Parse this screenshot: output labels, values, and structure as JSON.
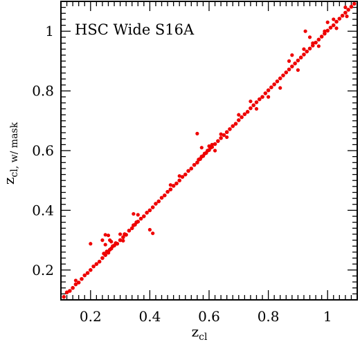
{
  "chart_data": {
    "type": "scatter",
    "title": "",
    "annotation": "HSC Wide S16A",
    "xlabel": {
      "main": "z",
      "sub": "cl"
    },
    "ylabel": {
      "main": "z",
      "sub": "cl, w/ mask"
    },
    "xlim": [
      0.1,
      1.1
    ],
    "ylim": [
      0.1,
      1.1
    ],
    "xticks_major": [
      0.2,
      0.4,
      0.6,
      0.8,
      1.0
    ],
    "xtick_labels": [
      "0.2",
      "0.4",
      "0.6",
      "0.8",
      "1"
    ],
    "yticks_major": [
      0.2,
      0.4,
      0.6,
      0.8,
      1.0
    ],
    "ytick_labels": [
      "0.2",
      "0.4",
      "0.6",
      "0.8",
      "1"
    ],
    "minor_tick_step": 0.02,
    "grid": false,
    "marker_color": "#ee0000",
    "series": [
      {
        "main_relation": "y = x",
        "points": [
          [
            0.11,
            0.11
          ],
          [
            0.12,
            0.125
          ],
          [
            0.13,
            0.13
          ],
          [
            0.14,
            0.14
          ],
          [
            0.15,
            0.152
          ],
          [
            0.16,
            0.158
          ],
          [
            0.17,
            0.17
          ],
          [
            0.18,
            0.182
          ],
          [
            0.19,
            0.19
          ],
          [
            0.2,
            0.2
          ],
          [
            0.21,
            0.212
          ],
          [
            0.22,
            0.22
          ],
          [
            0.23,
            0.228
          ],
          [
            0.24,
            0.24
          ],
          [
            0.245,
            0.255
          ],
          [
            0.25,
            0.25
          ],
          [
            0.255,
            0.262
          ],
          [
            0.26,
            0.258
          ],
          [
            0.265,
            0.268
          ],
          [
            0.27,
            0.272
          ],
          [
            0.275,
            0.28
          ],
          [
            0.28,
            0.282
          ],
          [
            0.285,
            0.29
          ],
          [
            0.29,
            0.288
          ],
          [
            0.3,
            0.3
          ],
          [
            0.31,
            0.31
          ],
          [
            0.315,
            0.32
          ],
          [
            0.32,
            0.318
          ],
          [
            0.33,
            0.332
          ],
          [
            0.34,
            0.34
          ],
          [
            0.345,
            0.35
          ],
          [
            0.35,
            0.352
          ],
          [
            0.355,
            0.36
          ],
          [
            0.36,
            0.362
          ],
          [
            0.37,
            0.372
          ],
          [
            0.38,
            0.38
          ],
          [
            0.39,
            0.392
          ],
          [
            0.4,
            0.4
          ],
          [
            0.41,
            0.41
          ],
          [
            0.42,
            0.422
          ],
          [
            0.43,
            0.43
          ],
          [
            0.44,
            0.442
          ],
          [
            0.45,
            0.45
          ],
          [
            0.46,
            0.462
          ],
          [
            0.47,
            0.47
          ],
          [
            0.48,
            0.482
          ],
          [
            0.49,
            0.49
          ],
          [
            0.5,
            0.5
          ],
          [
            0.51,
            0.512
          ],
          [
            0.52,
            0.52
          ],
          [
            0.53,
            0.532
          ],
          [
            0.54,
            0.54
          ],
          [
            0.55,
            0.552
          ],
          [
            0.56,
            0.56
          ],
          [
            0.565,
            0.57
          ],
          [
            0.57,
            0.572
          ],
          [
            0.575,
            0.58
          ],
          [
            0.58,
            0.582
          ],
          [
            0.585,
            0.59
          ],
          [
            0.59,
            0.592
          ],
          [
            0.595,
            0.6
          ],
          [
            0.6,
            0.602
          ],
          [
            0.605,
            0.61
          ],
          [
            0.61,
            0.612
          ],
          [
            0.62,
            0.622
          ],
          [
            0.63,
            0.632
          ],
          [
            0.64,
            0.642
          ],
          [
            0.65,
            0.652
          ],
          [
            0.66,
            0.662
          ],
          [
            0.67,
            0.672
          ],
          [
            0.68,
            0.682
          ],
          [
            0.69,
            0.69
          ],
          [
            0.7,
            0.702
          ],
          [
            0.71,
            0.712
          ],
          [
            0.72,
            0.722
          ],
          [
            0.73,
            0.73
          ],
          [
            0.74,
            0.742
          ],
          [
            0.75,
            0.752
          ],
          [
            0.76,
            0.762
          ],
          [
            0.77,
            0.772
          ],
          [
            0.78,
            0.78
          ],
          [
            0.79,
            0.792
          ],
          [
            0.8,
            0.802
          ],
          [
            0.81,
            0.812
          ],
          [
            0.82,
            0.822
          ],
          [
            0.83,
            0.832
          ],
          [
            0.84,
            0.842
          ],
          [
            0.85,
            0.852
          ],
          [
            0.86,
            0.862
          ],
          [
            0.87,
            0.872
          ],
          [
            0.88,
            0.882
          ],
          [
            0.89,
            0.892
          ],
          [
            0.9,
            0.902
          ],
          [
            0.91,
            0.912
          ],
          [
            0.92,
            0.922
          ],
          [
            0.93,
            0.932
          ],
          [
            0.94,
            0.942
          ],
          [
            0.95,
            0.952
          ],
          [
            0.96,
            0.962
          ],
          [
            0.97,
            0.972
          ],
          [
            0.98,
            0.982
          ],
          [
            0.99,
            0.992
          ],
          [
            1.0,
            1.002
          ],
          [
            1.01,
            1.012
          ],
          [
            1.02,
            1.02
          ],
          [
            1.03,
            1.032
          ],
          [
            1.04,
            1.042
          ],
          [
            1.05,
            1.052
          ],
          [
            1.06,
            1.062
          ],
          [
            1.07,
            1.072
          ],
          [
            1.08,
            1.082
          ],
          [
            1.09,
            1.092
          ]
        ]
      },
      {
        "outliers": [
          [
            0.2,
            0.288
          ],
          [
            0.24,
            0.3
          ],
          [
            0.25,
            0.318
          ],
          [
            0.26,
            0.316
          ],
          [
            0.265,
            0.3
          ],
          [
            0.25,
            0.285
          ],
          [
            0.27,
            0.295
          ],
          [
            0.345,
            0.388
          ],
          [
            0.36,
            0.385
          ],
          [
            0.41,
            0.323
          ],
          [
            0.4,
            0.335
          ],
          [
            0.56,
            0.657
          ],
          [
            0.575,
            0.61
          ],
          [
            0.6,
            0.615
          ],
          [
            0.61,
            0.62
          ],
          [
            0.62,
            0.6
          ],
          [
            0.64,
            0.655
          ],
          [
            0.74,
            0.765
          ],
          [
            0.76,
            0.74
          ],
          [
            0.84,
            0.81
          ],
          [
            0.87,
            0.9
          ],
          [
            0.9,
            0.87
          ],
          [
            0.92,
            0.94
          ],
          [
            0.925,
            1.0
          ],
          [
            0.88,
            0.92
          ],
          [
            0.95,
            0.96
          ],
          [
            0.94,
            0.98
          ],
          [
            1.0,
            1.03
          ],
          [
            1.02,
            1.04
          ],
          [
            1.03,
            1.01
          ],
          [
            1.06,
            1.08
          ],
          [
            1.065,
            1.05
          ],
          [
            0.15,
            0.165
          ],
          [
            0.3,
            0.32
          ],
          [
            0.31,
            0.298
          ],
          [
            0.47,
            0.485
          ],
          [
            0.5,
            0.515
          ],
          [
            0.66,
            0.645
          ],
          [
            0.7,
            0.72
          ],
          [
            0.8,
            0.78
          ],
          [
            0.97,
            0.95
          ],
          [
            0.99,
            1.0
          ]
        ]
      }
    ]
  }
}
